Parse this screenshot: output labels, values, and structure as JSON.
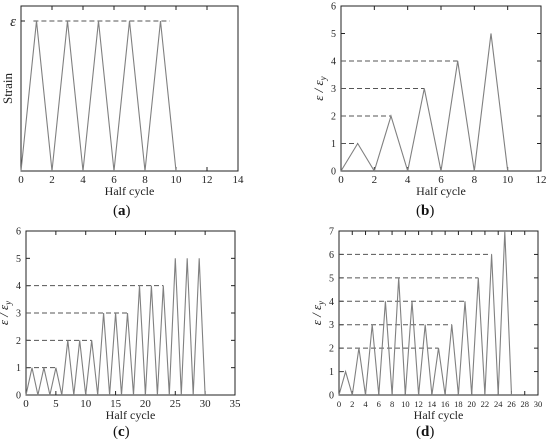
{
  "panel_labels": [
    "a",
    "b",
    "c",
    "d"
  ],
  "colors": {
    "line": "#808080",
    "dash": "#555555",
    "axis": "#222222"
  },
  "chart_data": [
    {
      "type": "line",
      "panel": "a",
      "xlabel": "Half cycle",
      "ylabel": "Strain",
      "xlim": [
        0,
        14
      ],
      "xticks": [
        0,
        2,
        4,
        6,
        8,
        10,
        12,
        14
      ],
      "ylim": [
        0,
        1.1
      ],
      "yticks": [],
      "y_symbol": "ε",
      "y_symbol_at": 1,
      "x": [
        0,
        1,
        2,
        3,
        4,
        5,
        6,
        7,
        8,
        9,
        10
      ],
      "y": [
        0,
        1,
        0,
        1,
        0,
        1,
        0,
        1,
        0,
        1,
        0
      ],
      "reference_levels": [
        {
          "y": 1,
          "x0": 0.8,
          "x1": 9.6
        }
      ]
    },
    {
      "type": "line",
      "panel": "b",
      "xlabel": "Half cycle",
      "ylabel": "ε / εy",
      "xlim": [
        0,
        12
      ],
      "xticks": [
        0,
        2,
        4,
        6,
        8,
        10,
        12
      ],
      "ylim": [
        0,
        6
      ],
      "yticks": [
        0,
        1,
        2,
        3,
        4,
        5,
        6
      ],
      "x": [
        0,
        1,
        2,
        3,
        4,
        5,
        6,
        7,
        8,
        9,
        10
      ],
      "y": [
        0,
        1,
        0,
        2,
        0,
        3,
        0,
        4,
        0,
        5,
        0
      ],
      "reference_levels": [
        {
          "y": 1,
          "x0": 0,
          "x1": 1
        },
        {
          "y": 2,
          "x0": 0,
          "x1": 3
        },
        {
          "y": 3,
          "x0": 0,
          "x1": 5
        },
        {
          "y": 4,
          "x0": 0,
          "x1": 7
        }
      ]
    },
    {
      "type": "line",
      "panel": "c",
      "xlabel": "Half cycle",
      "ylabel": "ε / εy",
      "xlim": [
        0,
        35
      ],
      "xticks": [
        0,
        5,
        10,
        15,
        20,
        25,
        30,
        35
      ],
      "ylim": [
        0,
        6
      ],
      "yticks": [
        0,
        1,
        2,
        3,
        4,
        5,
        6
      ],
      "x": [
        0,
        1,
        2,
        3,
        4,
        5,
        6,
        7,
        8,
        9,
        10,
        11,
        12,
        13,
        14,
        15,
        16,
        17,
        18,
        19,
        20,
        21,
        22,
        23,
        24,
        25,
        26,
        27,
        28,
        29,
        30
      ],
      "y": [
        0,
        1,
        0,
        1,
        0,
        1,
        0,
        2,
        0,
        2,
        0,
        2,
        0,
        3,
        0,
        3,
        0,
        3,
        0,
        4,
        0,
        4,
        0,
        4,
        0,
        5,
        0,
        5,
        0,
        5,
        0
      ],
      "reference_levels": [
        {
          "y": 1,
          "x0": 0,
          "x1": 5
        },
        {
          "y": 2,
          "x0": 0,
          "x1": 11
        },
        {
          "y": 3,
          "x0": 0,
          "x1": 17
        },
        {
          "y": 4,
          "x0": 0,
          "x1": 23
        }
      ]
    },
    {
      "type": "line",
      "panel": "d",
      "xlabel": "Half cycle",
      "ylabel": "ε / εy",
      "xlim": [
        0,
        30
      ],
      "xticks": [
        0,
        2,
        4,
        6,
        8,
        10,
        12,
        14,
        16,
        18,
        20,
        22,
        24,
        26,
        28,
        30
      ],
      "ylim": [
        0,
        7
      ],
      "yticks": [
        0,
        1,
        2,
        3,
        4,
        5,
        6,
        7
      ],
      "x": [
        0,
        1,
        2,
        3,
        4,
        5,
        6,
        7,
        8,
        9,
        10,
        11,
        12,
        13,
        14,
        15,
        16,
        17,
        18,
        19,
        20,
        21,
        22,
        23,
        24,
        25,
        26
      ],
      "y": [
        0,
        1,
        0,
        2,
        0,
        3,
        0,
        4,
        0,
        5,
        0,
        4,
        0,
        3,
        0,
        2,
        0,
        3,
        0,
        4,
        0,
        5,
        0,
        6,
        0,
        7,
        0
      ],
      "reference_levels": [
        {
          "y": 1,
          "x0": 0,
          "x1": 1
        },
        {
          "y": 2,
          "x0": 0,
          "x1": 15
        },
        {
          "y": 3,
          "x0": 0,
          "x1": 17
        },
        {
          "y": 4,
          "x0": 0,
          "x1": 19
        },
        {
          "y": 5,
          "x0": 0,
          "x1": 21
        },
        {
          "y": 6,
          "x0": 0,
          "x1": 23
        }
      ]
    }
  ]
}
